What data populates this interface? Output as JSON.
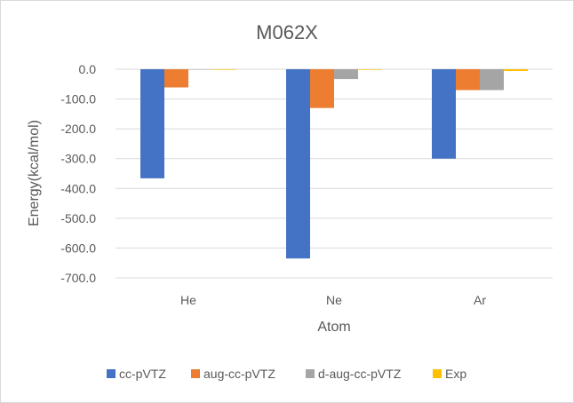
{
  "chart_data": {
    "type": "bar",
    "title": "M062X",
    "xlabel": "Atom",
    "ylabel": "Energy(kcal/mol)",
    "categories": [
      "He",
      "Ne",
      "Ar"
    ],
    "ylim": [
      -700,
      0
    ],
    "ytick_step": 100,
    "ytick_labels": [
      "0.0",
      "-100.0",
      "-200.0",
      "-300.0",
      "-400.0",
      "-500.0",
      "-600.0",
      "-700.0"
    ],
    "grid": true,
    "legend_position": "bottom",
    "series": [
      {
        "name": "cc-pVTZ",
        "color": "#4472C4",
        "values": [
          -366,
          -635,
          -300
        ]
      },
      {
        "name": "aug-cc-pVTZ",
        "color": "#ED7D31",
        "values": [
          -61,
          -130,
          -70
        ]
      },
      {
        "name": "d-aug-cc-pVTZ",
        "color": "#A5A5A5",
        "values": [
          0,
          -33,
          -70
        ]
      },
      {
        "name": "Exp",
        "color": "#FFC000",
        "values": [
          -2,
          -2,
          -6
        ]
      }
    ]
  }
}
